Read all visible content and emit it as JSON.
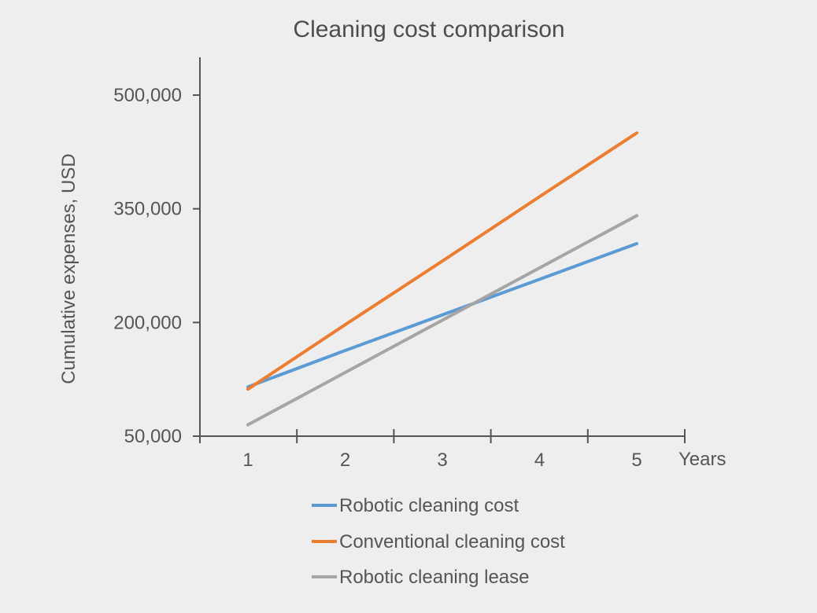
{
  "chart_data": {
    "type": "line",
    "title": "Cleaning cost comparison",
    "xlabel": "Years",
    "ylabel": "Cumulative expenses, USD",
    "x": [
      1,
      2,
      3,
      4,
      5
    ],
    "y_ticks": [
      50000,
      200000,
      350000,
      500000
    ],
    "y_tick_labels": [
      "50,000",
      "200,000",
      "350,000",
      "500,000"
    ],
    "ylim": [
      50000,
      500000
    ],
    "grid": false,
    "legend_position": "bottom",
    "series": [
      {
        "name": "Robotic cleaning cost",
        "color": "#5b9bd5",
        "values": [
          115000,
          163000,
          210000,
          257000,
          304000
        ]
      },
      {
        "name": "Conventional cleaning cost",
        "color": "#ed7d31",
        "values": [
          112000,
          197000,
          281000,
          366000,
          450000
        ]
      },
      {
        "name": "Robotic cleaning lease",
        "color": "#a5a5a5",
        "values": [
          65000,
          134000,
          203000,
          272000,
          341000
        ]
      }
    ]
  }
}
